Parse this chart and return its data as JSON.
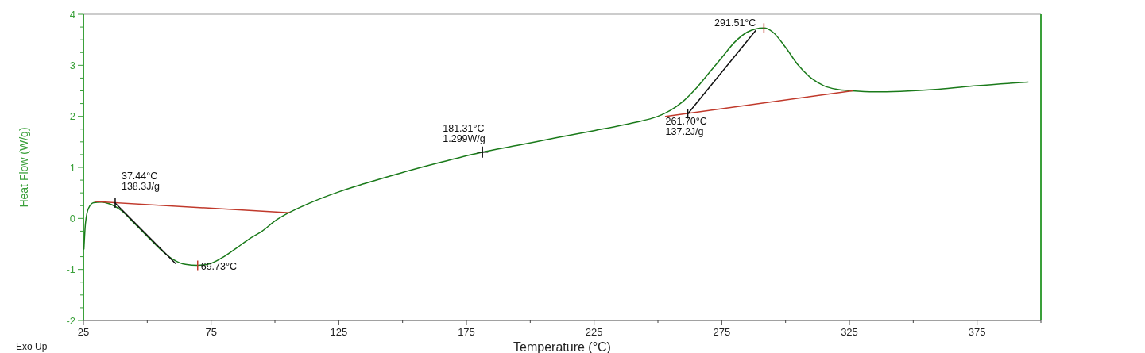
{
  "chart_data": {
    "type": "line",
    "xlabel": "Temperature (°C)",
    "ylabel": "Heat Flow (W/g)",
    "xlim": [
      25,
      400
    ],
    "xticks": [
      25,
      75,
      125,
      175,
      225,
      275,
      325,
      375
    ],
    "ylim": [
      -2,
      4
    ],
    "yticks": [
      -2,
      -1,
      0,
      1,
      2,
      3,
      4
    ],
    "grid": false,
    "marker": "none",
    "line_style": "solid",
    "series": [
      {
        "color": "#1a7a1a",
        "x": [
          25.2,
          25.8,
          27,
          29,
          32,
          35,
          40,
          45,
          50,
          55,
          60,
          65,
          69.73,
          75,
          80,
          85,
          90,
          95,
          100,
          105,
          110,
          115,
          125,
          135,
          150,
          165,
          181.3,
          195,
          210,
          225,
          240,
          250,
          255,
          260,
          265,
          270,
          275,
          280,
          285,
          288,
          291.5,
          295,
          300,
          305,
          310,
          315,
          320,
          326,
          335,
          345,
          360,
          375,
          395
        ],
        "values": [
          -0.6,
          -0.1,
          0.2,
          0.31,
          0.32,
          0.29,
          0.15,
          -0.1,
          -0.35,
          -0.6,
          -0.8,
          -0.9,
          -0.92,
          -0.88,
          -0.75,
          -0.58,
          -0.4,
          -0.25,
          -0.05,
          0.1,
          0.22,
          0.33,
          0.52,
          0.68,
          0.9,
          1.1,
          1.3,
          1.43,
          1.58,
          1.72,
          1.87,
          2.0,
          2.12,
          2.3,
          2.55,
          2.85,
          3.15,
          3.45,
          3.65,
          3.71,
          3.73,
          3.65,
          3.35,
          3.0,
          2.75,
          2.6,
          2.53,
          2.5,
          2.48,
          2.49,
          2.53,
          2.6,
          2.67
        ]
      },
      {
        "type": "line",
        "color": "#c0392b",
        "x": [
          29.5,
          105.8
        ],
        "values": [
          0.33,
          0.11
        ]
      },
      {
        "type": "line",
        "color": "#c0392b",
        "x": [
          253,
          326.2
        ],
        "values": [
          2.0,
          2.5
        ]
      },
      {
        "type": "line",
        "color": "#111111",
        "x": [
          37.44,
          61
        ],
        "values": [
          0.3,
          -0.88
        ]
      },
      {
        "type": "line",
        "color": "#111111",
        "x": [
          261.7,
          288.3
        ],
        "values": [
          2.05,
          3.68
        ]
      }
    ],
    "annotations": [
      {
        "text": "37.44°C\n138.3J/g",
        "x": 37.44,
        "y": 0.3
      },
      {
        "text": "69.73°C",
        "x": 69.73,
        "y": -0.92
      },
      {
        "text": "181.31°C\n1.299W/g",
        "x": 181.31,
        "y": 1.299
      },
      {
        "text": "261.70°C\n137.2J/g",
        "x": 261.7,
        "y": 2.05
      },
      {
        "text": "291.51°C",
        "x": 291.51,
        "y": 3.73
      },
      "Exo Up"
    ]
  }
}
